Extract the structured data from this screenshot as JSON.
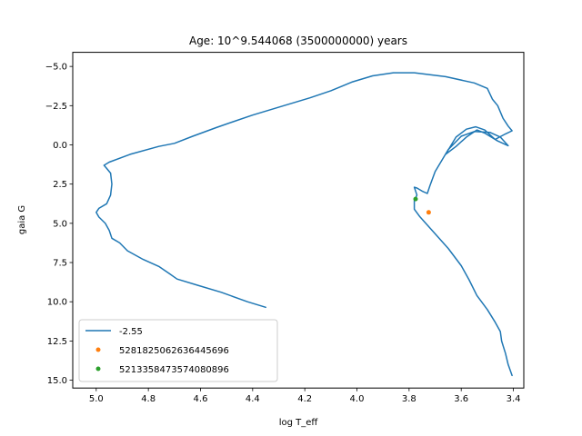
{
  "chart_data": {
    "type": "line",
    "title": "Age: 10^9.544068 (3500000000) years",
    "xlabel": "log T_eff",
    "ylabel": "gaia G",
    "xlim": [
      5.09,
      3.36
    ],
    "ylim": [
      15.5,
      -5.9
    ],
    "x_inverted": true,
    "y_inverted": true,
    "x_ticks": [
      5.0,
      4.8,
      4.6,
      4.4,
      4.2,
      4.0,
      3.8,
      3.6,
      3.4
    ],
    "x_tick_labels": [
      "5.0",
      "4.8",
      "4.6",
      "4.4",
      "4.2",
      "4.0",
      "3.8",
      "3.6",
      "3.4"
    ],
    "y_ticks": [
      -5.0,
      -2.5,
      0.0,
      2.5,
      5.0,
      7.5,
      10.0,
      12.5,
      15.0
    ],
    "y_tick_labels": [
      "−5.0",
      "−2.5",
      "0.0",
      "2.5",
      "5.0",
      "7.5",
      "10.0",
      "12.5",
      "15.0"
    ],
    "grid": false,
    "legend_position": "lower-left",
    "series": [
      {
        "name": "-2.55",
        "kind": "line",
        "color": "#1f77b4",
        "points": [
          [
            4.35,
            10.35
          ],
          [
            4.42,
            10.0
          ],
          [
            4.52,
            9.4
          ],
          [
            4.61,
            8.95
          ],
          [
            4.69,
            8.55
          ],
          [
            4.72,
            8.2
          ],
          [
            4.76,
            7.75
          ],
          [
            4.82,
            7.3
          ],
          [
            4.88,
            6.75
          ],
          [
            4.91,
            6.25
          ],
          [
            4.94,
            5.95
          ],
          [
            4.95,
            5.45
          ],
          [
            4.965,
            5.0
          ],
          [
            4.99,
            4.6
          ],
          [
            5.0,
            4.3
          ],
          [
            4.99,
            4.05
          ],
          [
            4.96,
            3.75
          ],
          [
            4.945,
            3.2
          ],
          [
            4.94,
            2.5
          ],
          [
            4.945,
            1.8
          ],
          [
            4.96,
            1.5
          ],
          [
            4.97,
            1.3
          ],
          [
            4.95,
            1.1
          ],
          [
            4.87,
            0.6
          ],
          [
            4.76,
            0.1
          ],
          [
            4.7,
            -0.1
          ],
          [
            4.63,
            -0.55
          ],
          [
            4.54,
            -1.1
          ],
          [
            4.48,
            -1.45
          ],
          [
            4.4,
            -1.9
          ],
          [
            4.28,
            -2.5
          ],
          [
            4.18,
            -3.0
          ],
          [
            4.1,
            -3.45
          ],
          [
            4.02,
            -4.0
          ],
          [
            3.94,
            -4.4
          ],
          [
            3.86,
            -4.6
          ],
          [
            3.78,
            -4.6
          ],
          [
            3.66,
            -4.35
          ],
          [
            3.55,
            -3.95
          ],
          [
            3.5,
            -3.6
          ],
          [
            3.48,
            -2.9
          ],
          [
            3.46,
            -2.5
          ],
          [
            3.44,
            -1.7
          ],
          [
            3.42,
            -1.2
          ],
          [
            3.405,
            -0.9
          ],
          [
            3.43,
            -0.7
          ],
          [
            3.47,
            -0.35
          ],
          [
            3.51,
            -0.95
          ],
          [
            3.545,
            -1.15
          ],
          [
            3.58,
            -1.0
          ],
          [
            3.62,
            -0.5
          ],
          [
            3.66,
            0.6
          ],
          [
            3.62,
            0.1
          ],
          [
            3.58,
            -0.5
          ],
          [
            3.54,
            -0.95
          ],
          [
            3.51,
            -0.75
          ],
          [
            3.46,
            -0.25
          ],
          [
            3.42,
            0.05
          ],
          [
            3.45,
            -0.5
          ],
          [
            3.49,
            -0.8
          ],
          [
            3.55,
            -0.85
          ],
          [
            3.6,
            -0.55
          ],
          [
            3.65,
            0.3
          ],
          [
            3.7,
            1.7
          ],
          [
            3.72,
            2.6
          ],
          [
            3.73,
            3.1
          ],
          [
            3.75,
            2.95
          ],
          [
            3.77,
            2.75
          ],
          [
            3.78,
            2.7
          ],
          [
            3.77,
            3.2
          ],
          [
            3.78,
            3.55
          ],
          [
            3.78,
            4.1
          ],
          [
            3.76,
            4.55
          ],
          [
            3.72,
            5.3
          ],
          [
            3.65,
            6.6
          ],
          [
            3.6,
            7.7
          ],
          [
            3.57,
            8.6
          ],
          [
            3.54,
            9.6
          ],
          [
            3.5,
            10.5
          ],
          [
            3.47,
            11.3
          ],
          [
            3.45,
            11.9
          ],
          [
            3.445,
            12.5
          ],
          [
            3.43,
            13.3
          ],
          [
            3.42,
            14.0
          ],
          [
            3.405,
            14.7
          ]
        ]
      },
      {
        "name": "5281825062636445696",
        "kind": "scatter",
        "color": "#ff7f0e",
        "points": [
          [
            3.725,
            4.3
          ]
        ]
      },
      {
        "name": "5213358473574080896",
        "kind": "scatter",
        "color": "#2ca02c",
        "points": [
          [
            3.775,
            3.45
          ]
        ]
      }
    ]
  },
  "colors": {
    "axes_edge": "#000000",
    "background": "#ffffff",
    "legend_edge": "#cccccc"
  }
}
